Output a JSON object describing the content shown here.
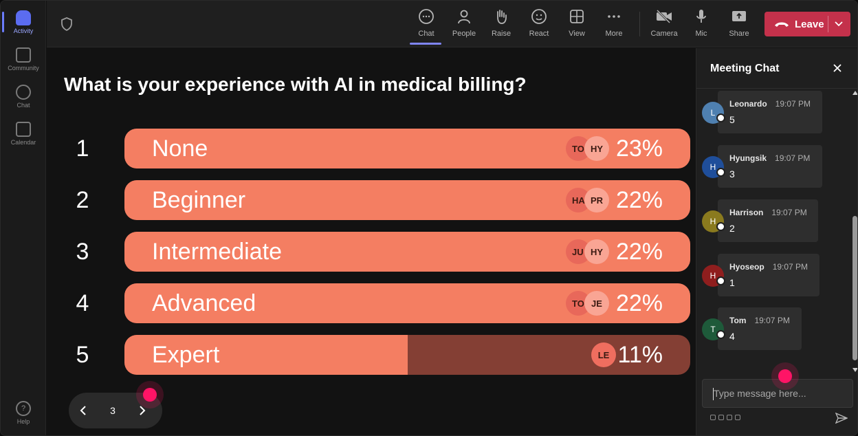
{
  "rail": {
    "items": [
      {
        "label": "Activity",
        "icon": "bell-icon",
        "active": true
      },
      {
        "label": "Community",
        "icon": "community-icon",
        "active": false
      },
      {
        "label": "Chat",
        "icon": "chat-icon",
        "active": false
      },
      {
        "label": "Calendar",
        "icon": "calendar-icon",
        "active": false
      }
    ],
    "help": {
      "label": "Help",
      "icon": "help-icon"
    }
  },
  "toolbar": {
    "buttons": [
      {
        "key": "chat",
        "label": "Chat",
        "icon": "chat-icon",
        "active": true
      },
      {
        "key": "people",
        "label": "People",
        "icon": "people-icon",
        "active": false
      },
      {
        "key": "raise",
        "label": "Raise",
        "icon": "hand-icon",
        "active": false
      },
      {
        "key": "react",
        "label": "React",
        "icon": "smiley-icon",
        "active": false
      },
      {
        "key": "view",
        "label": "View",
        "icon": "grid-icon",
        "active": false
      },
      {
        "key": "more",
        "label": "More",
        "icon": "more-icon",
        "active": false
      },
      {
        "key": "camera",
        "label": "Camera",
        "icon": "camera-off-icon",
        "active": false
      },
      {
        "key": "mic",
        "label": "Mic",
        "icon": "mic-icon",
        "active": false
      },
      {
        "key": "share",
        "label": "Share",
        "icon": "share-icon",
        "active": false
      }
    ],
    "leave_label": "Leave",
    "leave_color": "#c4314b"
  },
  "poll": {
    "question": "What is your experience with AI in medical billing?",
    "options": [
      {
        "number": "1",
        "label": "None",
        "percent": "23%",
        "fill": 1.0,
        "voters": [
          "TO",
          "HY"
        ]
      },
      {
        "number": "2",
        "label": "Beginner",
        "percent": "22%",
        "fill": 1.0,
        "voters": [
          "HA",
          "PR"
        ]
      },
      {
        "number": "3",
        "label": "Intermediate",
        "percent": "22%",
        "fill": 1.0,
        "voters": [
          "JU",
          "HY"
        ]
      },
      {
        "number": "4",
        "label": "Advanced",
        "percent": "22%",
        "fill": 1.0,
        "voters": [
          "TO",
          "JE"
        ]
      },
      {
        "number": "5",
        "label": "Expert",
        "percent": "11%",
        "fill": 0.5,
        "voters": [
          "LE"
        ]
      }
    ],
    "bar_color": "#f47e62",
    "bar_track_color": "#843f34",
    "page": "3"
  },
  "chat": {
    "title": "Meeting Chat",
    "messages": [
      {
        "initial": "L",
        "name": "Leonardo",
        "time": "19:07 PM",
        "text": "5",
        "color": "#4f80b0"
      },
      {
        "initial": "H",
        "name": "Hyungsik",
        "time": "19:07 PM",
        "text": "3",
        "color": "#1f4e9a"
      },
      {
        "initial": "H",
        "name": "Harrison",
        "time": "19:07 PM",
        "text": "2",
        "color": "#8a7a1e"
      },
      {
        "initial": "H",
        "name": "Hyoseop",
        "time": "19:07 PM",
        "text": "1",
        "color": "#8f1e1e"
      },
      {
        "initial": "T",
        "name": "Tom",
        "time": "19:07 PM",
        "text": "4",
        "color": "#1e5a3a"
      }
    ],
    "compose_placeholder": "Type message here..."
  }
}
